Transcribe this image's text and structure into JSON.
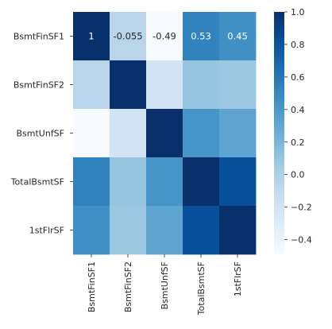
{
  "chart_data": {
    "type": "heatmap",
    "title": "",
    "xlabel": "",
    "ylabel": "",
    "row_labels": [
      "BsmtFinSF1",
      "BsmtFinSF2",
      "BsmtUnfSF",
      "TotalBsmtSF",
      "1stFlrSF"
    ],
    "col_labels": [
      "BsmtFinSF1",
      "BsmtFinSF2",
      "BsmtUnfSF",
      "TotalBsmtSF",
      "1stFlrSF"
    ],
    "values": [
      [
        1.0,
        -0.055,
        -0.49,
        0.53,
        0.45
      ],
      [
        -0.055,
        1.0,
        -0.21,
        0.1,
        0.08
      ],
      [
        -0.49,
        -0.21,
        1.0,
        0.42,
        0.32
      ],
      [
        0.53,
        0.1,
        0.42,
        1.0,
        0.82
      ],
      [
        0.45,
        0.08,
        0.32,
        0.82,
        1.0
      ]
    ],
    "annotations": [
      {
        "row": 0,
        "col": 0,
        "text": "1"
      },
      {
        "row": 0,
        "col": 1,
        "text": "-0.055"
      },
      {
        "row": 0,
        "col": 2,
        "text": "-0.49"
      },
      {
        "row": 0,
        "col": 3,
        "text": "0.53"
      },
      {
        "row": 0,
        "col": 4,
        "text": "0.45"
      }
    ],
    "colorbar": {
      "min": -0.49,
      "max": 1.0,
      "ticks": [
        1.0,
        0.8,
        0.6,
        0.4,
        0.2,
        0.0,
        -0.2,
        -0.4
      ],
      "tick_labels": [
        "1.0",
        "0.8",
        "0.6",
        "0.4",
        "0.2",
        "0.0",
        "−0.2",
        "−0.4"
      ]
    },
    "colormap": "Blues",
    "grid": false,
    "legend": "colorbar-right"
  }
}
